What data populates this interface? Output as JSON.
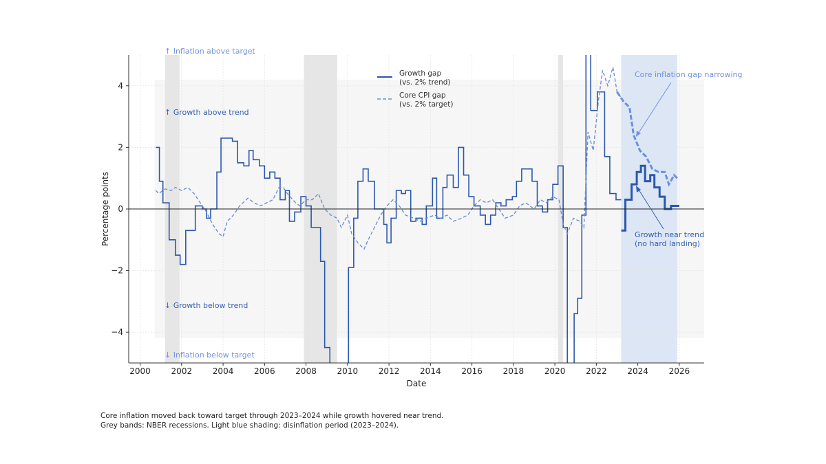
{
  "chart_data": {
    "type": "line",
    "xlabel": "Date",
    "ylabel": "Percentage points",
    "xlim": [
      1999.45,
      2027.2
    ],
    "ylim": [
      -5,
      5
    ],
    "xticks": [
      2000,
      2002,
      2004,
      2006,
      2008,
      2010,
      2012,
      2014,
      2016,
      2018,
      2020,
      2022,
      2024,
      2026
    ],
    "xtick_labels": [
      "2000",
      "2002",
      "2004",
      "2006",
      "2008",
      "2010",
      "2012",
      "2014",
      "2016",
      "2018",
      "2020",
      "2022",
      "2024",
      "2026"
    ],
    "yticks": [
      -4,
      -2,
      0,
      2,
      4
    ],
    "ytick_labels": [
      "−4",
      "−2",
      "0",
      "2",
      "4"
    ],
    "grid": true,
    "legend_placement": "top-center",
    "colors": {
      "growth": "#2b57aa",
      "core": "#6b8fda",
      "recession": "#e6e6e6",
      "disinflation": "#dce6f4",
      "zone": "#f6f6f6"
    },
    "recession_bands": [
      [
        2001.2,
        2001.9
      ],
      [
        2007.9,
        2009.5
      ],
      [
        2020.15,
        2020.4
      ]
    ],
    "disinflation_band": [
      2023.2,
      2025.9
    ],
    "neutral_zone": {
      "x_from": 2000.7,
      "y": [
        -4.2,
        4.2
      ]
    },
    "emphasis_from": 2023.2,
    "series": [
      {
        "name": "Growth gap\n(vs. 2% trend)",
        "style": "solid-step",
        "x": [
          2000.76,
          2000.93,
          2001.1,
          2001.4,
          2001.7,
          2001.93,
          2002.2,
          2002.66,
          2003.0,
          2003.2,
          2003.4,
          2003.7,
          2003.9,
          2004.45,
          2004.7,
          2005.0,
          2005.25,
          2005.45,
          2005.75,
          2006.0,
          2006.25,
          2006.5,
          2006.75,
          2007.0,
          2007.2,
          2007.45,
          2007.75,
          2008.0,
          2008.25,
          2008.7,
          2008.9,
          2009.15,
          2009.9,
          2010.05,
          2010.3,
          2010.5,
          2010.75,
          2011.0,
          2011.3,
          2011.75,
          2011.9,
          2012.1,
          2012.35,
          2012.6,
          2012.8,
          2013.05,
          2013.3,
          2013.6,
          2013.8,
          2014.1,
          2014.3,
          2014.6,
          2014.8,
          2015.1,
          2015.35,
          2015.6,
          2015.85,
          2016.1,
          2016.4,
          2016.65,
          2016.9,
          2017.15,
          2017.4,
          2017.65,
          2017.95,
          2018.15,
          2018.4,
          2018.9,
          2019.15,
          2019.4,
          2019.65,
          2019.9,
          2020.15,
          2020.4,
          2020.6,
          2020.93,
          2021.1,
          2021.3,
          2021.5,
          2021.73,
          2022.05,
          2022.4,
          2022.65,
          2022.95,
          2023.2,
          2023.4,
          2023.7,
          2023.95,
          2024.15,
          2024.35,
          2024.6,
          2024.8,
          2025.05,
          2025.3,
          2025.6,
          2026.0
        ],
        "values": [
          2.0,
          0.9,
          0.2,
          -1.0,
          -1.5,
          -1.8,
          -0.7,
          0.1,
          0.0,
          -0.3,
          0.0,
          1.2,
          2.3,
          2.2,
          1.5,
          1.4,
          1.9,
          1.6,
          1.4,
          1.0,
          1.2,
          1.0,
          0.3,
          0.6,
          -0.4,
          -0.1,
          0.4,
          0.1,
          -0.6,
          -1.7,
          -4.5,
          -5.5,
          -5.5,
          -1.9,
          -0.3,
          0.9,
          1.3,
          0.9,
          0.0,
          -0.5,
          -1.1,
          -0.3,
          0.6,
          0.5,
          0.6,
          -0.4,
          -0.3,
          -0.5,
          0.1,
          1.0,
          -0.3,
          0.7,
          1.1,
          0.7,
          2.0,
          1.1,
          0.4,
          0.1,
          -0.2,
          -0.5,
          -0.2,
          0.2,
          0.1,
          0.3,
          0.4,
          0.9,
          1.3,
          0.9,
          0.1,
          -0.1,
          0.3,
          0.8,
          1.4,
          -0.6,
          -5.5,
          -3.4,
          -2.9,
          -0.2,
          5.5,
          3.2,
          3.8,
          1.7,
          0.5,
          0.3,
          -0.7,
          0.3,
          0.8,
          1.2,
          1.4,
          0.9,
          1.1,
          0.7,
          0.4,
          0.0,
          0.1,
          0.1
        ]
      },
      {
        "name": "Core CPI gap\n(vs. 2% target)",
        "style": "dashed",
        "x": [
          2000.75,
          2000.9,
          2001.2,
          2001.5,
          2001.7,
          2002.0,
          2002.3,
          2002.6,
          2002.9,
          2003.2,
          2003.5,
          2003.8,
          2004.0,
          2004.2,
          2004.5,
          2004.8,
          2005.2,
          2005.5,
          2005.8,
          2006.1,
          2006.4,
          2006.7,
          2006.9,
          2007.1,
          2007.5,
          2007.7,
          2008.0,
          2008.3,
          2008.6,
          2008.9,
          2009.2,
          2009.5,
          2009.7,
          2010.0,
          2010.2,
          2010.5,
          2010.8,
          2011.0,
          2011.3,
          2011.6,
          2011.9,
          2012.2,
          2012.5,
          2012.8,
          2013.2,
          2013.5,
          2013.8,
          2014.2,
          2014.5,
          2014.8,
          2015.1,
          2015.5,
          2015.8,
          2016.1,
          2016.4,
          2016.7,
          2017.0,
          2017.3,
          2017.6,
          2018.0,
          2018.3,
          2018.6,
          2019.0,
          2019.3,
          2019.6,
          2019.9,
          2020.2,
          2020.4,
          2020.6,
          2020.9,
          2021.2,
          2021.4,
          2021.6,
          2021.85,
          2022.1,
          2022.3,
          2022.55,
          2022.8,
          2023.0,
          2023.3,
          2023.6,
          2023.8,
          2024.1,
          2024.4,
          2024.7,
          2025.0,
          2025.3,
          2025.5,
          2025.75,
          2025.9
        ],
        "values": [
          0.6,
          0.5,
          0.65,
          0.6,
          0.7,
          0.6,
          0.7,
          0.5,
          0.2,
          -0.1,
          -0.5,
          -0.8,
          -0.9,
          -0.4,
          -0.2,
          0.1,
          0.35,
          0.2,
          0.1,
          0.2,
          0.3,
          0.7,
          0.7,
          0.5,
          0.2,
          0.1,
          0.3,
          0.3,
          0.5,
          0.0,
          -0.2,
          -0.3,
          -0.6,
          -0.2,
          -0.8,
          -1.1,
          -1.3,
          -1.0,
          -0.6,
          -0.2,
          0.1,
          0.3,
          0.1,
          -0.2,
          -0.3,
          -0.4,
          -0.3,
          -0.2,
          -0.3,
          -0.2,
          -0.4,
          -0.3,
          -0.2,
          0.1,
          0.3,
          0.2,
          0.3,
          0.0,
          -0.3,
          -0.2,
          0.1,
          0.2,
          0.0,
          0.3,
          0.2,
          0.4,
          0.3,
          -0.5,
          -0.8,
          -0.3,
          -0.4,
          -0.6,
          2.5,
          1.9,
          3.5,
          4.5,
          4.0,
          4.6,
          3.8,
          3.5,
          3.3,
          2.4,
          1.9,
          1.7,
          1.3,
          1.2,
          1.2,
          0.8,
          1.1,
          1.0
        ]
      }
    ],
    "annotations": {
      "inflation_above": "↑ Inflation above target",
      "inflation_below": "↓ Inflation below target",
      "growth_above": "↑ Growth above trend",
      "growth_below": "↓ Growth below trend",
      "core_narrowing": "Core inflation gap narrowing",
      "growth_near_1": "Growth near trend",
      "growth_near_2": "(no hard landing)"
    },
    "legend": {
      "growth_1": "Growth gap",
      "growth_2": "(vs. 2% trend)",
      "core_1": "Core CPI gap",
      "core_2": "(vs. 2% target)"
    }
  },
  "caption": {
    "line1": "Core inflation moved back toward target through 2023–2024 while growth hovered near trend.",
    "line2": "Grey bands: NBER recessions. Light blue shading: disinflation period (2023–2024)."
  }
}
